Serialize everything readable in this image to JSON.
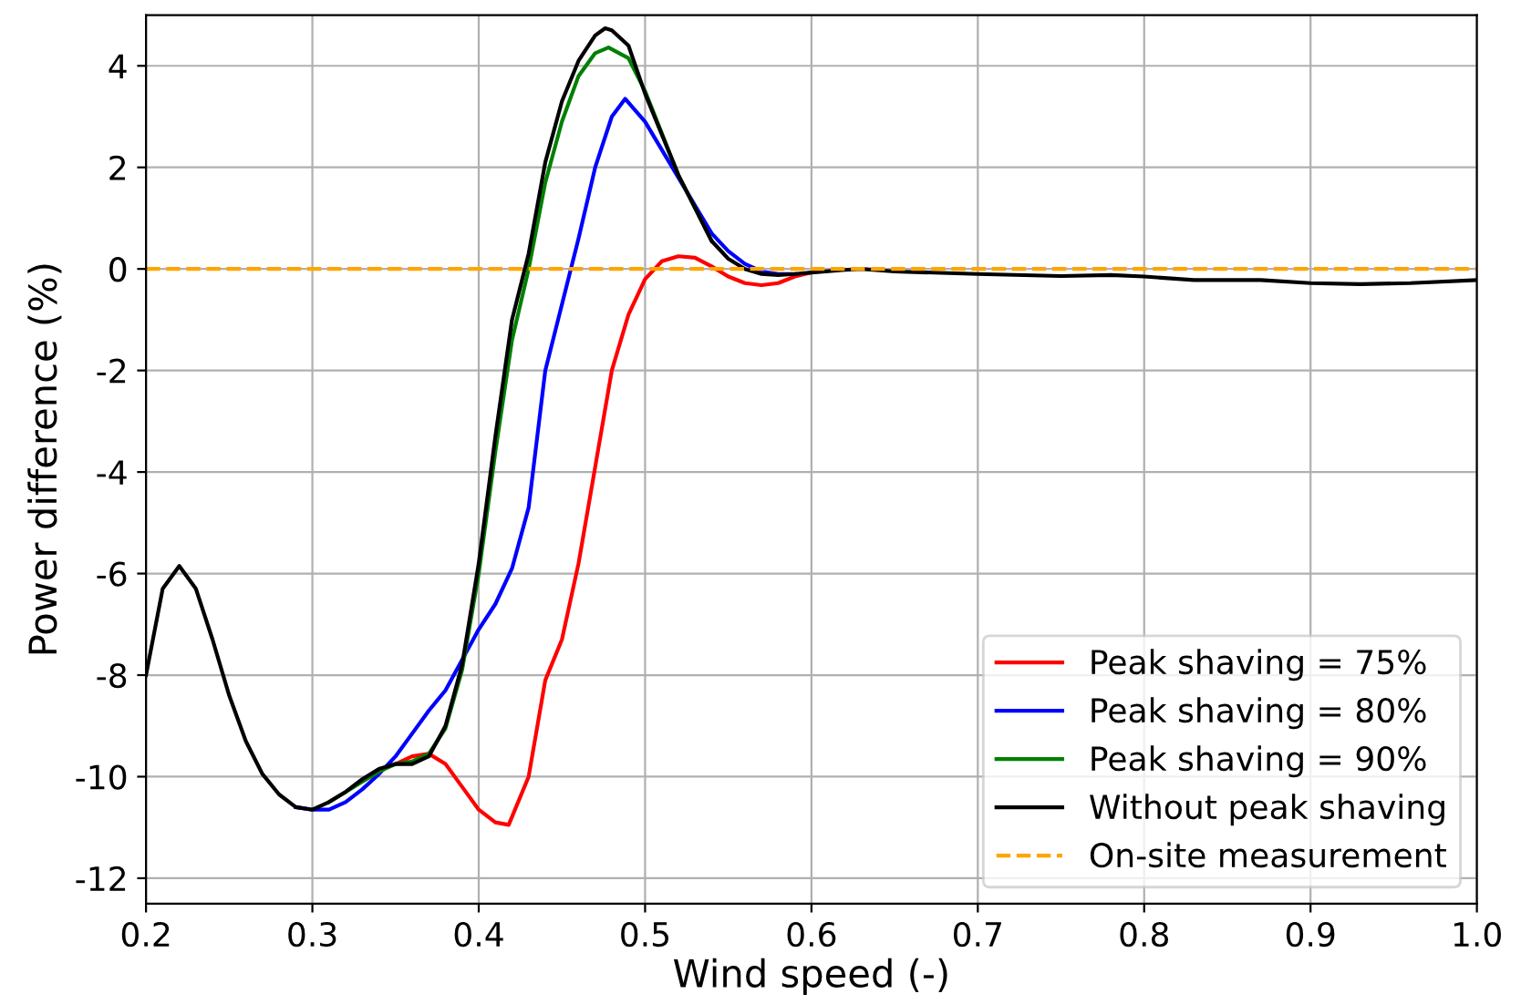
{
  "chart_data": {
    "type": "line",
    "xlabel": "Wind speed (-)",
    "ylabel": "Power difference (%)",
    "xlim": [
      0.2,
      1.0
    ],
    "ylim": [
      -12.5,
      5
    ],
    "xticks": [
      0.2,
      0.3,
      0.4,
      0.5,
      0.6,
      0.7,
      0.8,
      0.9,
      {
        "value": 1.0,
        "label": "1.0"
      }
    ],
    "yticks": [
      -12,
      -10,
      -8,
      -6,
      -4,
      -2,
      0,
      2,
      4
    ],
    "grid": true,
    "legend": "bottom right",
    "line_style": "solid",
    "marker": "none",
    "series": [
      {
        "name": "Peak shaving = 75%",
        "color": "#ff0000",
        "x": [
          0.35,
          0.36,
          0.37,
          0.38,
          0.39,
          0.4,
          0.41,
          0.418,
          0.43,
          0.44,
          0.45,
          0.46,
          0.47,
          0.48,
          0.49,
          0.5,
          0.51,
          0.52,
          0.53,
          0.54,
          0.55,
          0.56,
          0.57,
          0.58,
          0.59,
          0.6
        ],
        "values": [
          -9.75,
          -9.6,
          -9.55,
          -9.75,
          -10.2,
          -10.65,
          -10.9,
          -10.95,
          -10.0,
          -8.1,
          -7.3,
          -5.8,
          -3.9,
          -2.0,
          -0.9,
          -0.2,
          0.15,
          0.25,
          0.22,
          0.05,
          -0.15,
          -0.28,
          -0.32,
          -0.28,
          -0.15,
          -0.07
        ]
      },
      {
        "name": "Peak shaving = 80%",
        "color": "#0000ff",
        "x": [
          0.29,
          0.3,
          0.31,
          0.32,
          0.33,
          0.34,
          0.35,
          0.36,
          0.37,
          0.38,
          0.39,
          0.4,
          0.41,
          0.42,
          0.43,
          0.44,
          0.45,
          0.46,
          0.47,
          0.48,
          0.488,
          0.5,
          0.52,
          0.54,
          0.55,
          0.56,
          0.57,
          0.58,
          0.59
        ],
        "values": [
          -10.6,
          -10.65,
          -10.65,
          -10.5,
          -10.25,
          -9.95,
          -9.6,
          -9.15,
          -8.7,
          -8.3,
          -7.7,
          -7.1,
          -6.6,
          -5.9,
          -4.7,
          -2.0,
          -0.7,
          0.6,
          2.0,
          3.0,
          3.35,
          2.9,
          1.8,
          0.7,
          0.35,
          0.1,
          -0.05,
          -0.1,
          -0.1
        ]
      },
      {
        "name": "Peak shaving = 90%",
        "color": "#008000",
        "x": [
          0.31,
          0.32,
          0.33,
          0.34,
          0.35,
          0.36,
          0.37,
          0.38,
          0.39,
          0.4,
          0.41,
          0.42,
          0.43,
          0.44,
          0.45,
          0.46,
          0.47,
          0.478,
          0.49,
          0.5,
          0.52,
          0.54
        ],
        "values": [
          -10.5,
          -10.3,
          -10.1,
          -9.9,
          -9.75,
          -9.7,
          -9.55,
          -9.05,
          -7.9,
          -6.0,
          -3.6,
          -1.4,
          0.0,
          1.7,
          2.9,
          3.8,
          4.25,
          4.36,
          4.15,
          3.5,
          1.85,
          0.55
        ]
      },
      {
        "name": "Without peak shaving",
        "color": "#000000",
        "x": [
          0.2,
          0.21,
          0.22,
          0.23,
          0.24,
          0.25,
          0.26,
          0.27,
          0.28,
          0.29,
          0.3,
          0.31,
          0.32,
          0.33,
          0.34,
          0.35,
          0.36,
          0.37,
          0.38,
          0.39,
          0.4,
          0.41,
          0.42,
          0.43,
          0.44,
          0.45,
          0.46,
          0.47,
          0.476,
          0.48,
          0.49,
          0.5,
          0.52,
          0.54,
          0.55,
          0.56,
          0.57,
          0.58,
          0.59,
          0.6,
          0.62,
          0.63,
          0.65,
          0.7,
          0.75,
          0.78,
          0.8,
          0.83,
          0.87,
          0.9,
          0.93,
          0.96,
          1.0
        ],
        "values": [
          -8.0,
          -6.3,
          -5.85,
          -6.3,
          -7.3,
          -8.4,
          -9.3,
          -9.95,
          -10.35,
          -10.6,
          -10.65,
          -10.5,
          -10.3,
          -10.05,
          -9.85,
          -9.75,
          -9.75,
          -9.6,
          -9.0,
          -7.8,
          -5.8,
          -3.3,
          -1.0,
          0.3,
          2.1,
          3.3,
          4.1,
          4.6,
          4.74,
          4.7,
          4.4,
          3.45,
          1.85,
          0.55,
          0.2,
          0.0,
          -0.1,
          -0.12,
          -0.1,
          -0.07,
          -0.02,
          0.0,
          -0.05,
          -0.1,
          -0.14,
          -0.12,
          -0.15,
          -0.22,
          -0.22,
          -0.28,
          -0.3,
          -0.28,
          -0.22
        ]
      }
    ],
    "ref_lines": [
      {
        "axis": "y",
        "value": 0,
        "label": "On-site measurement",
        "color": "#ffa500",
        "line_style": "dashed"
      }
    ]
  }
}
